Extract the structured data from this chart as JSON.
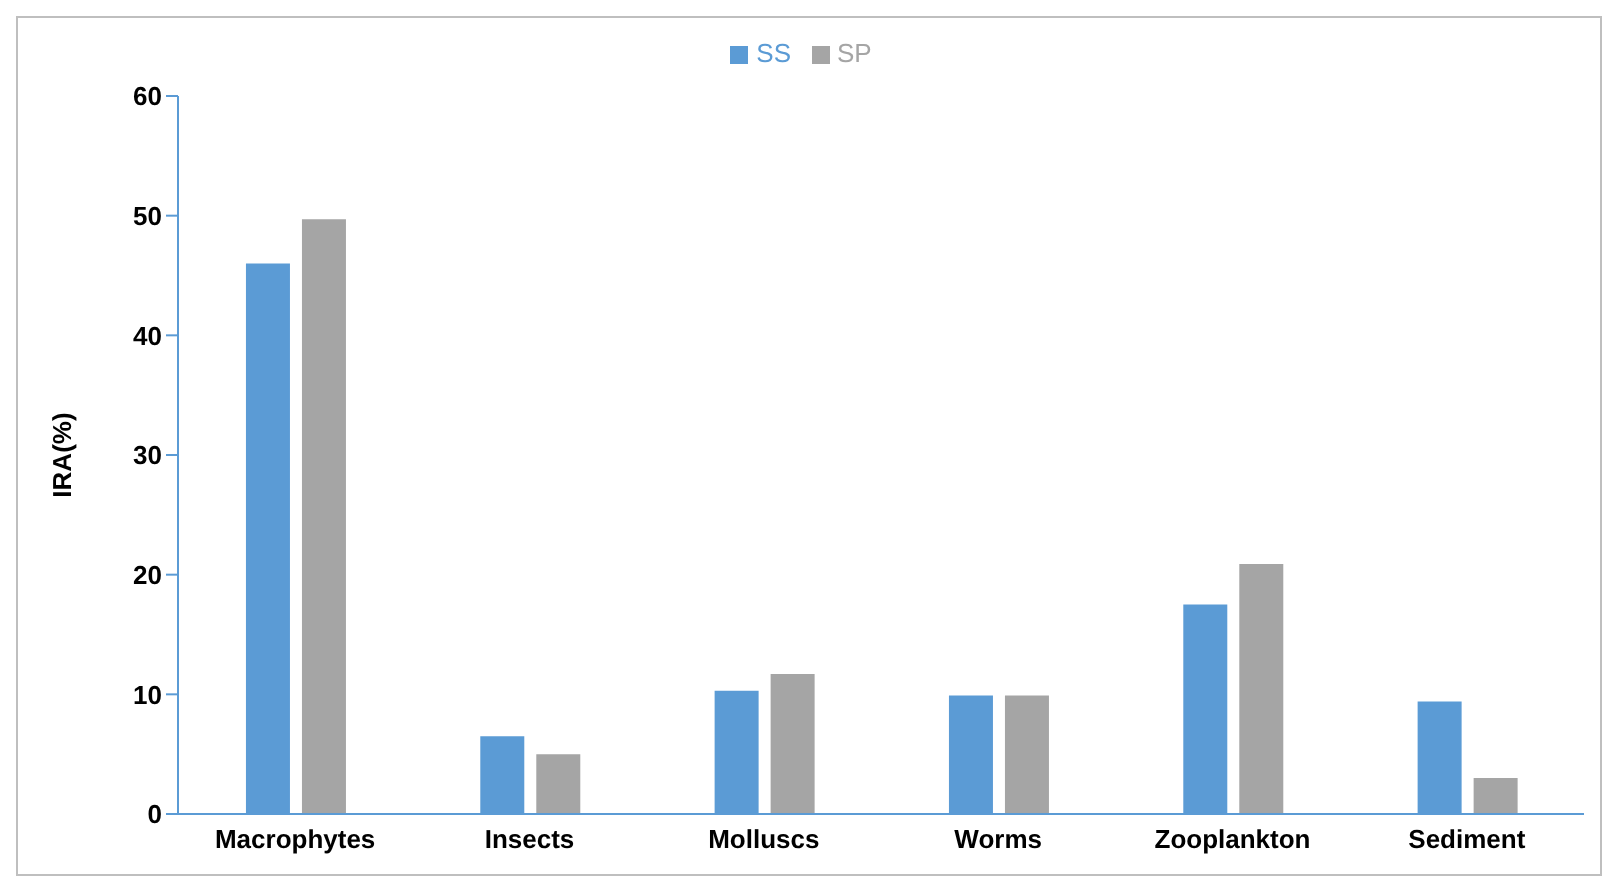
{
  "chart_data": {
    "type": "bar",
    "ylabel": "IRA(%)",
    "categories": [
      "Macrophytes",
      "Insects",
      "Molluscs",
      "Worms",
      "Zooplankton",
      "Sediment"
    ],
    "series": [
      {
        "name": "SS",
        "color": "#5b9bd5",
        "values": [
          46.0,
          6.5,
          10.3,
          9.9,
          17.5,
          9.4
        ]
      },
      {
        "name": "SP",
        "color": "#a5a5a5",
        "values": [
          49.7,
          5.0,
          11.7,
          9.9,
          20.9,
          3.0
        ]
      }
    ],
    "ylim": [
      0,
      60
    ],
    "yticks": [
      0,
      10,
      20,
      30,
      40,
      50,
      60
    ],
    "grid": false,
    "legend": "top"
  }
}
